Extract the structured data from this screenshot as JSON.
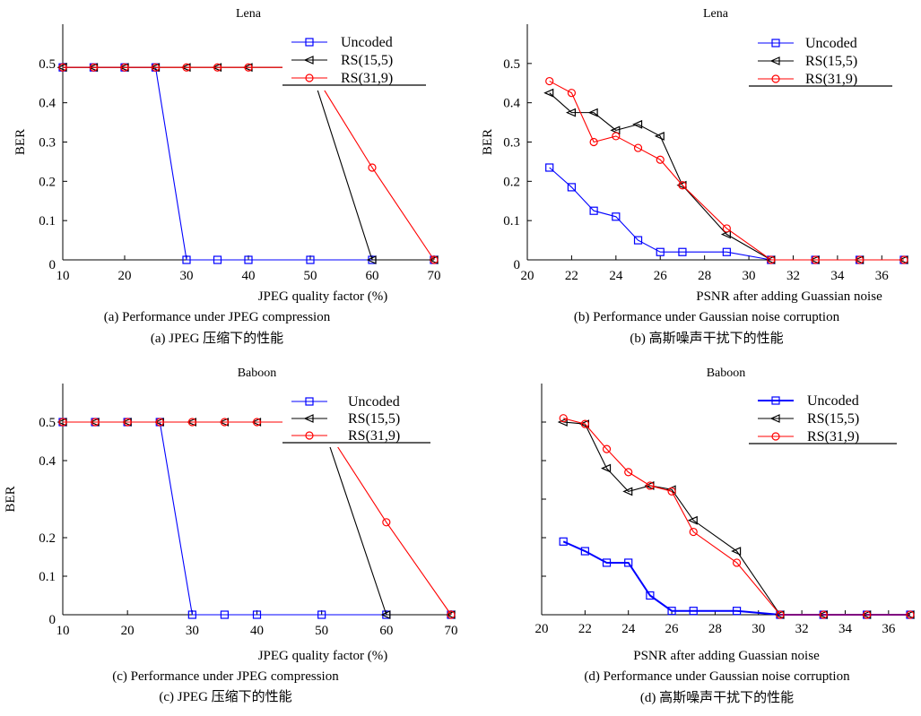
{
  "chart_data": [
    {
      "type": "line",
      "title": "Lena",
      "xlabel": "JPEG quality factor (%)",
      "ylabel": "BER",
      "caption_en": "(a) Performance under JPEG compression",
      "caption_zh": "(a) JPEG 压缩下的性能",
      "xlim": [
        10,
        70
      ],
      "ylim": [
        0,
        0.6
      ],
      "xticks": [
        10,
        20,
        30,
        40,
        50,
        60,
        70
      ],
      "xtick_labels": [
        "10",
        "20",
        "30",
        "40",
        "50",
        "60",
        "70"
      ],
      "yticks": [
        0,
        0.1,
        0.2,
        0.3,
        0.4,
        0.5
      ],
      "ytick_labels": [
        "0",
        "0.1",
        "0.2",
        "0.3",
        "0.4",
        "0.5"
      ],
      "grid": false,
      "legend_position": "top-right",
      "series": [
        {
          "name": "Uncoded",
          "color": "#0000ff",
          "marker": "square",
          "x": [
            10,
            15,
            20,
            25,
            30,
            35,
            40,
            50,
            60,
            70
          ],
          "y": [
            0.49,
            0.49,
            0.49,
            0.49,
            0,
            0,
            0,
            0,
            0,
            0
          ]
        },
        {
          "name": "RS(15,5)",
          "color": "#000000",
          "marker": "triangle-left",
          "x": [
            10,
            15,
            20,
            25,
            30,
            35,
            40,
            50,
            60,
            70
          ],
          "y": [
            0.49,
            0.49,
            0.49,
            0.49,
            0.49,
            0.49,
            0.49,
            0.49,
            0,
            0
          ]
        },
        {
          "name": "RS(31,9)",
          "color": "#ff0000",
          "marker": "circle",
          "x": [
            10,
            15,
            20,
            25,
            30,
            35,
            40,
            50,
            60,
            70
          ],
          "y": [
            0.49,
            0.49,
            0.49,
            0.49,
            0.49,
            0.49,
            0.49,
            0.49,
            0.235,
            0
          ]
        }
      ]
    },
    {
      "type": "line",
      "title": "Lena",
      "xlabel": "PSNR after adding Guassian noise",
      "ylabel": "BER",
      "caption_en": "(b) Performance under Gaussian noise corruption",
      "caption_zh": "(b)  高斯噪声干扰下的性能",
      "xlim": [
        20,
        37
      ],
      "ylim": [
        0,
        0.6
      ],
      "xticks": [
        20,
        22,
        24,
        26,
        28,
        30,
        32,
        34,
        36
      ],
      "xtick_labels": [
        "20",
        "22",
        "24",
        "26",
        "28",
        "30",
        "32",
        "34",
        "36"
      ],
      "yticks": [
        0,
        0.1,
        0.2,
        0.3,
        0.4,
        0.5
      ],
      "ytick_labels": [
        "0",
        "0.1",
        "0.2",
        "0.3",
        "0.4",
        "0.5"
      ],
      "grid": false,
      "legend_position": "top-right",
      "series": [
        {
          "name": "Uncoded",
          "color": "#0000ff",
          "marker": "square",
          "x": [
            21,
            22,
            23,
            24,
            25,
            26,
            27,
            29,
            31,
            33,
            35,
            37
          ],
          "y": [
            0.235,
            0.185,
            0.125,
            0.11,
            0.05,
            0.02,
            0.02,
            0.02,
            0,
            0,
            0,
            0
          ]
        },
        {
          "name": "RS(15,5)",
          "color": "#000000",
          "marker": "triangle-left",
          "x": [
            21,
            22,
            23,
            24,
            25,
            26,
            27,
            29,
            31,
            33,
            35,
            37
          ],
          "y": [
            0.425,
            0.375,
            0.375,
            0.33,
            0.345,
            0.315,
            0.19,
            0.065,
            0,
            0,
            0,
            0
          ]
        },
        {
          "name": "RS(31,9)",
          "color": "#ff0000",
          "marker": "circle",
          "x": [
            21,
            22,
            23,
            24,
            25,
            26,
            27,
            29,
            31,
            33,
            35,
            37
          ],
          "y": [
            0.455,
            0.425,
            0.3,
            0.315,
            0.285,
            0.255,
            0.19,
            0.08,
            0,
            0,
            0,
            0
          ]
        }
      ]
    },
    {
      "type": "line",
      "title": "Baboon",
      "xlabel": "JPEG quality factor (%)",
      "ylabel": "BER",
      "caption_en": "(c) Performance under JPEG compression",
      "caption_zh": "(c) JPEG 压缩下的性能",
      "xlim": [
        10,
        70
      ],
      "ylim": [
        0,
        0.6
      ],
      "xticks": [
        10,
        20,
        30,
        40,
        50,
        60,
        70
      ],
      "xtick_labels": [
        "10",
        "20",
        "30",
        "40",
        "50",
        "60",
        "70"
      ],
      "yticks": [
        0,
        0.1,
        0.2,
        0.4,
        0.5
      ],
      "ytick_labels": [
        "0",
        "0.1",
        "0.2",
        "0.4",
        "0.5"
      ],
      "grid": false,
      "legend_position": "top-right",
      "series": [
        {
          "name": "Uncoded",
          "color": "#0000ff",
          "marker": "square",
          "x": [
            10,
            15,
            20,
            25,
            30,
            35,
            40,
            50,
            60,
            70
          ],
          "y": [
            0.5,
            0.5,
            0.5,
            0.5,
            0,
            0,
            0,
            0,
            0,
            0
          ]
        },
        {
          "name": "RS(15,5)",
          "color": "#000000",
          "marker": "triangle-left",
          "x": [
            10,
            15,
            20,
            25,
            30,
            35,
            40,
            50,
            60,
            70
          ],
          "y": [
            0.5,
            0.5,
            0.5,
            0.5,
            0.5,
            0.5,
            0.5,
            0.5,
            0,
            0
          ]
        },
        {
          "name": "RS(31,9)",
          "color": "#ff0000",
          "marker": "circle",
          "x": [
            10,
            15,
            20,
            25,
            30,
            35,
            40,
            50,
            60,
            70
          ],
          "y": [
            0.5,
            0.5,
            0.5,
            0.5,
            0.5,
            0.5,
            0.5,
            0.5,
            0.24,
            0
          ]
        }
      ]
    },
    {
      "type": "line",
      "title": "Baboon",
      "xlabel": "PSNR after adding Guassian noise",
      "ylabel": "",
      "caption_en": "(d) Performance under Gaussian noise corruption",
      "caption_zh": "(d)  高斯噪声干扰下的性能",
      "xlim": [
        20,
        37
      ],
      "ylim": [
        0,
        0.6
      ],
      "xticks": [
        20,
        22,
        24,
        26,
        28,
        30,
        32,
        34,
        36
      ],
      "xtick_labels": [
        "20",
        "22",
        "24",
        "26",
        "28",
        "30",
        "32",
        "34",
        "36"
      ],
      "yticks": [
        0.1,
        0.2,
        0.3,
        0.4,
        0.5
      ],
      "ytick_labels": [],
      "grid": false,
      "legend_position": "top-right",
      "series": [
        {
          "name": "Uncoded",
          "color": "#0000ff",
          "marker": "square",
          "x": [
            21,
            22,
            23,
            24,
            25,
            26,
            27,
            29,
            31,
            33,
            35,
            37
          ],
          "y": [
            0.19,
            0.165,
            0.135,
            0.135,
            0.05,
            0.01,
            0.01,
            0.01,
            0,
            0,
            0,
            0
          ]
        },
        {
          "name": "RS(15,5)",
          "color": "#000000",
          "marker": "triangle-left",
          "x": [
            21,
            22,
            23,
            24,
            25,
            26,
            27,
            29,
            31,
            33,
            35,
            37
          ],
          "y": [
            0.5,
            0.495,
            0.38,
            0.32,
            0.335,
            0.325,
            0.245,
            0.165,
            0,
            0,
            0,
            0
          ]
        },
        {
          "name": "RS(31,9)",
          "color": "#ff0000",
          "marker": "circle",
          "x": [
            21,
            22,
            23,
            24,
            25,
            26,
            27,
            29,
            31,
            33,
            35,
            37
          ],
          "y": [
            0.51,
            0.495,
            0.43,
            0.37,
            0.335,
            0.32,
            0.215,
            0.135,
            0,
            0,
            0,
            0
          ]
        }
      ]
    }
  ]
}
